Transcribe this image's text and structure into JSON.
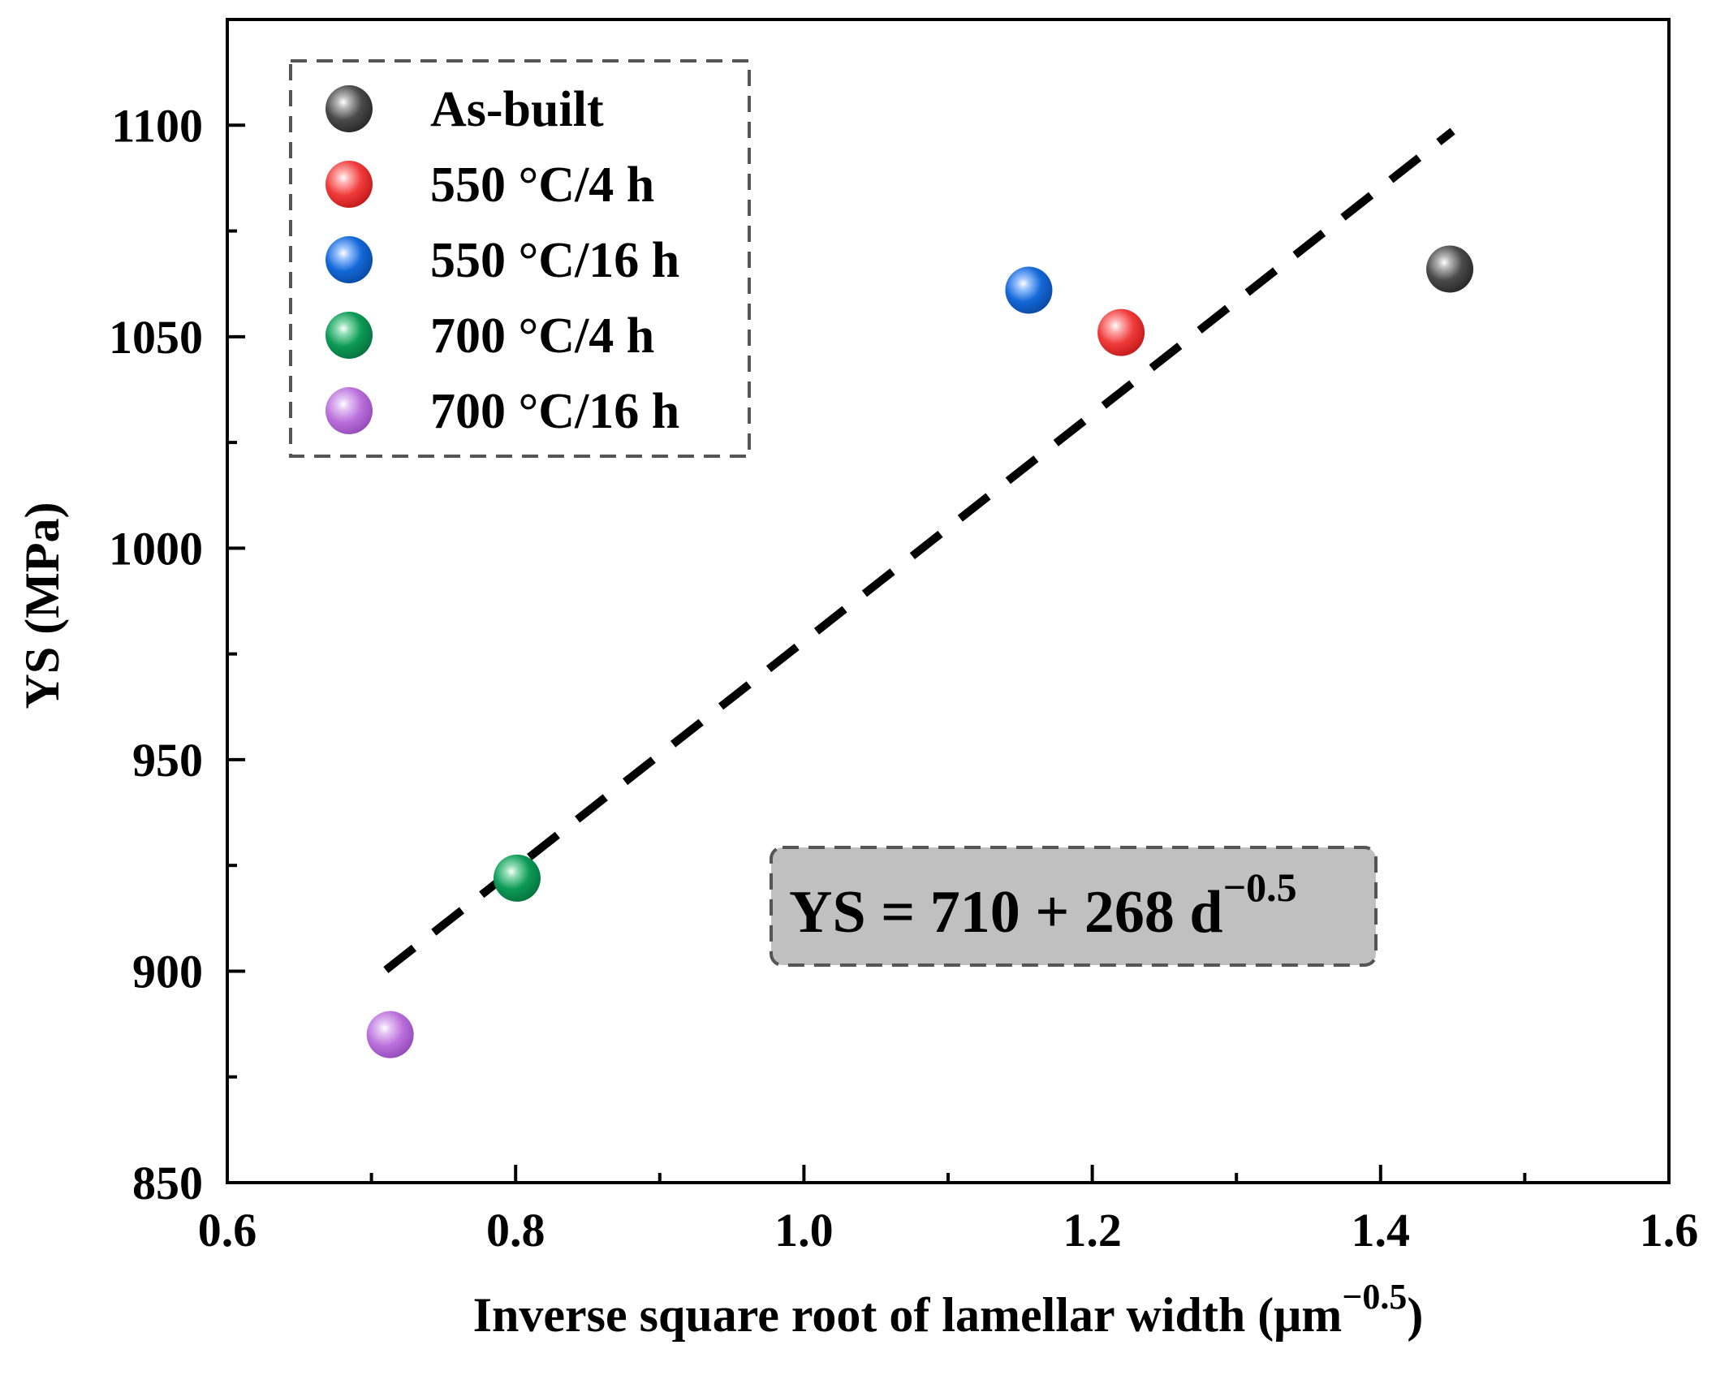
{
  "chart_data": {
    "type": "scatter",
    "title": "",
    "xlabel": "Inverse square root of lamellar width",
    "xlabel_unit": "(μm",
    "xlabel_unit_exp": "−0.5",
    "xlabel_unit_close": ")",
    "ylabel": "YS (MPa)",
    "xlim": [
      0.6,
      1.6
    ],
    "ylim": [
      850,
      1125
    ],
    "xticks": [
      0.6,
      0.8,
      1.0,
      1.2,
      1.4,
      1.6
    ],
    "xtick_labels": [
      "0.6",
      "0.8",
      "1.0",
      "1.2",
      "1.4",
      "1.6"
    ],
    "xminor": [
      0.7,
      0.9,
      1.1,
      1.3,
      1.5
    ],
    "yticks": [
      850,
      900,
      950,
      1000,
      1050,
      1100
    ],
    "ytick_labels": [
      "850",
      "900",
      "950",
      "1000",
      "1050",
      "1100"
    ],
    "yminor": [
      875,
      925,
      975,
      1025,
      1075
    ],
    "legend_position": "top-left",
    "series": [
      {
        "name": "As-built",
        "color": "#444444",
        "x": 1.448,
        "y": 1066
      },
      {
        "name": "550 °C/4 h",
        "color": "#f03a3a",
        "x": 1.22,
        "y": 1051
      },
      {
        "name": "550 °C/16 h",
        "color": "#1368d8",
        "x": 1.156,
        "y": 1061
      },
      {
        "name": "700 °C/4 h",
        "color": "#0c9a56",
        "x": 0.801,
        "y": 922
      },
      {
        "name": "700 °C/16 h",
        "color": "#bb71dc",
        "x": 0.713,
        "y": 885
      }
    ],
    "fit_line": {
      "x_start": 0.71,
      "x_end": 1.45,
      "intercept": 710,
      "slope": 268,
      "style": "dashed"
    },
    "equation": {
      "lhs": "YS = 710 + 268 d",
      "exponent": "−0.5",
      "box_color": "#c0c0c0"
    }
  }
}
